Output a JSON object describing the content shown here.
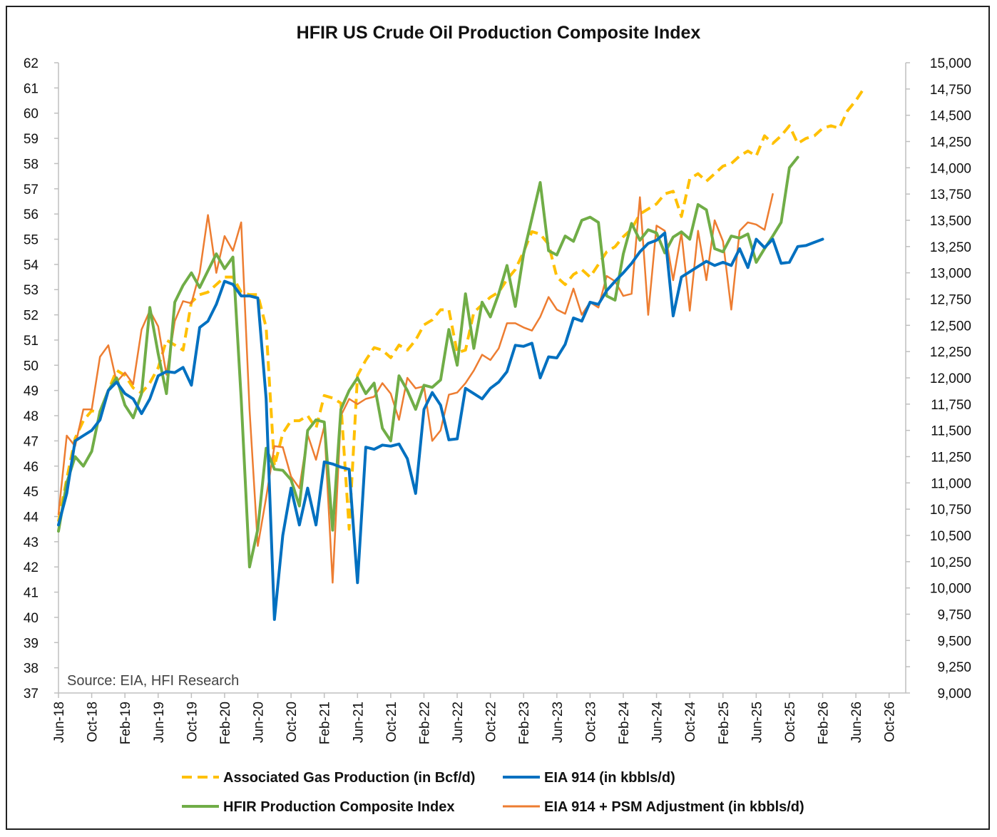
{
  "chart_data": {
    "type": "line",
    "title": "HFIR US Crude Oil Production Composite Index",
    "source_note": "Source: EIA, HFI Research",
    "x_tick_labels": [
      "Jun-18",
      "Oct-18",
      "Feb-19",
      "Jun-19",
      "Oct-19",
      "Feb-20",
      "Jun-20",
      "Oct-20",
      "Feb-21",
      "Jun-21",
      "Oct-21",
      "Feb-22",
      "Jun-22",
      "Oct-22",
      "Feb-23",
      "Jun-23",
      "Oct-23",
      "Feb-24",
      "Jun-24",
      "Oct-24",
      "Feb-25",
      "Jun-25",
      "Oct-25",
      "Feb-26",
      "Jun-26",
      "Oct-26"
    ],
    "x_range": [
      "Jun-18",
      "Dec-26"
    ],
    "left_axis": {
      "min": 37,
      "max": 62,
      "step": 1,
      "tick_labels": [
        "37",
        "38",
        "39",
        "40",
        "41",
        "42",
        "43",
        "44",
        "45",
        "46",
        "47",
        "48",
        "49",
        "50",
        "51",
        "52",
        "53",
        "54",
        "55",
        "56",
        "57",
        "58",
        "59",
        "60",
        "61",
        "62"
      ]
    },
    "right_axis": {
      "min": 9000,
      "max": 15000,
      "step": 250,
      "tick_labels": [
        "9,000",
        "9,250",
        "9,500",
        "9,750",
        "10,000",
        "10,250",
        "10,500",
        "10,750",
        "11,000",
        "11,250",
        "11,500",
        "11,750",
        "12,000",
        "12,250",
        "12,500",
        "12,750",
        "13,000",
        "13,250",
        "13,500",
        "13,750",
        "14,000",
        "14,250",
        "14,500",
        "14,750",
        "15,000"
      ]
    },
    "grid": false,
    "legend_position": "bottom",
    "series": [
      {
        "name": "Associated Gas Production (in Bcf/d)",
        "axis": "left",
        "color": "#FFC000",
        "dash": true,
        "start": "Jun-18",
        "values": [
          43.8,
          45.5,
          47.1,
          47.8,
          48.2,
          48.1,
          49.0,
          49.8,
          49.6,
          49.1,
          48.9,
          49.3,
          49.9,
          51.0,
          50.8,
          50.6,
          52.5,
          52.8,
          52.9,
          53.2,
          53.5,
          53.5,
          52.9,
          52.8,
          52.8,
          51.5,
          46.0,
          47.3,
          47.8,
          47.8,
          48.0,
          47.5,
          48.8,
          48.7,
          48.5,
          43.5,
          49.6,
          50.2,
          50.7,
          50.6,
          50.3,
          50.8,
          50.6,
          51.0,
          51.6,
          51.8,
          52.2,
          52.2,
          50.5,
          50.6,
          52.1,
          52.4,
          52.7,
          52.9,
          53.4,
          53.8,
          54.5,
          55.3,
          55.2,
          54.8,
          53.5,
          53.2,
          53.6,
          53.8,
          53.5,
          54.0,
          54.5,
          54.7,
          55.1,
          55.4,
          56.0,
          56.2,
          56.4,
          56.8,
          56.9,
          55.9,
          57.4,
          57.6,
          57.3,
          57.6,
          57.9,
          58.0,
          58.3,
          58.5,
          58.3,
          59.1,
          58.8,
          59.1,
          59.5,
          58.8,
          59.0,
          59.1,
          59.4,
          59.5,
          59.4,
          60.1,
          60.5,
          61.0
        ]
      },
      {
        "name": "EIA 914 (in kbbls/d)",
        "axis": "right",
        "color": "#0070C0",
        "dash": false,
        "start": "Jun-18",
        "values": [
          10600,
          10900,
          11400,
          11450,
          11500,
          11600,
          11880,
          11960,
          11850,
          11800,
          11660,
          11800,
          12020,
          12060,
          12050,
          12100,
          11930,
          12480,
          12540,
          12700,
          12920,
          12890,
          12780,
          12780,
          12760,
          11800,
          9700,
          10500,
          10950,
          10600,
          10950,
          10600,
          11200,
          11180,
          11150,
          11130,
          10050,
          11340,
          11320,
          11360,
          11350,
          11370,
          11230,
          10900,
          11700,
          11860,
          11740,
          11410,
          11420,
          11900,
          11850,
          11800,
          11900,
          11960,
          12060,
          12310,
          12300,
          12330,
          12000,
          12200,
          12190,
          12320,
          12570,
          12540,
          12720,
          12700,
          12830,
          12920,
          13000,
          13090,
          13200,
          13280,
          13310,
          13380,
          12590,
          12960,
          13010,
          13060,
          13110,
          13070,
          13100,
          13070,
          13230,
          13050,
          13320,
          13240,
          13320,
          13090,
          13100,
          13250,
          13260,
          13290,
          13320
        ]
      },
      {
        "name": "HFIR Production Composite Index",
        "axis": "right",
        "color": "#70AD47",
        "dash": false,
        "start": "Jun-18",
        "values": [
          10540,
          11000,
          11250,
          11160,
          11300,
          11680,
          11880,
          12000,
          11740,
          11620,
          11850,
          12670,
          12230,
          11850,
          12720,
          12880,
          13000,
          12860,
          13020,
          13180,
          13040,
          13150,
          11800,
          10200,
          10560,
          11330,
          11130,
          11120,
          11030,
          10780,
          11500,
          11600,
          11580,
          10550,
          11700,
          11880,
          12000,
          11850,
          11950,
          11520,
          11400,
          12020,
          11880,
          11700,
          11930,
          11910,
          11980,
          12460,
          12120,
          12800,
          12280,
          12720,
          12580,
          12800,
          13070,
          12680,
          13180,
          13520,
          13860,
          13210,
          13170,
          13350,
          13300,
          13500,
          13530,
          13480,
          12780,
          12740,
          13180,
          13470,
          13310,
          13410,
          13380,
          13190,
          13340,
          13390,
          13320,
          13650,
          13600,
          13230,
          13200,
          13350,
          13330,
          13370,
          13100,
          13230,
          13350,
          13480,
          14000,
          14100
        ]
      },
      {
        "name": "EIA 914 + PSM Adjustment (in kbbls/d)",
        "axis": "right",
        "color": "#ED7D31",
        "dash": false,
        "start": "Jun-18",
        "values": [
          10700,
          11450,
          11350,
          11700,
          11700,
          12200,
          12310,
          11960,
          12050,
          11940,
          12460,
          12640,
          12490,
          12030,
          12540,
          12730,
          12710,
          13000,
          13550,
          13000,
          13350,
          13210,
          13480,
          11700,
          10400,
          10860,
          11350,
          11340,
          11060,
          10950,
          11460,
          11220,
          11540,
          10050,
          11640,
          11800,
          11750,
          11800,
          11820,
          11950,
          11850,
          11600,
          12000,
          11900,
          11920,
          11400,
          11500,
          11840,
          11860,
          11950,
          12070,
          12220,
          12170,
          12280,
          12520,
          12520,
          12480,
          12450,
          12580,
          12770,
          12650,
          12610,
          12850,
          12600,
          12720,
          12670,
          12970,
          12920,
          12780,
          12800,
          13720,
          12600,
          13450,
          13400,
          12930,
          13380,
          12640,
          13400,
          12930,
          13500,
          13300,
          12650,
          13400,
          13480,
          13460,
          13410,
          13750
        ]
      }
    ]
  },
  "legend": {
    "items": [
      {
        "label": "Associated Gas Production (in Bcf/d)",
        "color": "#FFC000",
        "dash": true
      },
      {
        "label": "EIA 914 (in kbbls/d)",
        "color": "#0070C0",
        "dash": false
      },
      {
        "label": "HFIR Production Composite Index",
        "color": "#70AD47",
        "dash": false
      },
      {
        "label": "EIA 914 + PSM Adjustment (in kbbls/d)",
        "color": "#ED7D31",
        "dash": false
      }
    ]
  }
}
